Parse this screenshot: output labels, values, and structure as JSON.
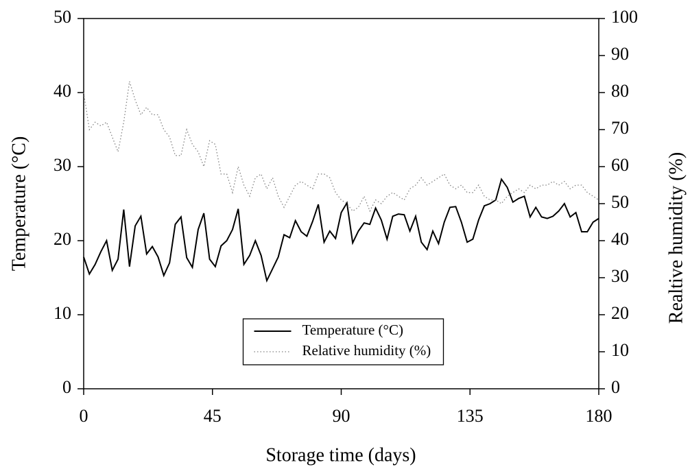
{
  "chart_data": {
    "type": "line",
    "xlabel": "Storage time (days)",
    "ylabel": "Temperature (°C)",
    "y2label": "Realtive humidity (%)",
    "x": [
      0,
      2,
      4,
      6,
      8,
      10,
      12,
      14,
      16,
      18,
      20,
      22,
      24,
      26,
      28,
      30,
      32,
      34,
      36,
      38,
      40,
      42,
      44,
      46,
      48,
      50,
      52,
      54,
      56,
      58,
      60,
      62,
      64,
      66,
      68,
      70,
      72,
      74,
      76,
      78,
      80,
      82,
      84,
      86,
      88,
      90,
      92,
      94,
      96,
      98,
      100,
      102,
      104,
      106,
      108,
      110,
      112,
      114,
      116,
      118,
      120,
      122,
      124,
      126,
      128,
      130,
      132,
      134,
      136,
      138,
      140,
      142,
      144,
      146,
      148,
      150,
      152,
      154,
      156,
      158,
      160,
      162,
      164,
      166,
      168,
      170,
      172,
      174,
      176,
      178,
      180
    ],
    "series": [
      {
        "name": "Temperature (°C)",
        "color": "#000000",
        "dash": "solid",
        "values": [
          17.8,
          15.5,
          16.8,
          18.5,
          20,
          16,
          17.5,
          24.2,
          16.5,
          22,
          23.3,
          18.2,
          19.2,
          17.8,
          15.3,
          17,
          22.2,
          23.2,
          17.7,
          16.4,
          21.5,
          23.7,
          17.5,
          16.5,
          19.3,
          20,
          21.5,
          24.3,
          16.8,
          18,
          20,
          18,
          14.6,
          16.2,
          17.8,
          20.8,
          20.4,
          22.7,
          21.2,
          20.6,
          22.6,
          24.9,
          19.8,
          21.3,
          20.3,
          23.8,
          25.1,
          19.7,
          21.3,
          22.4,
          22.2,
          24.4,
          22.8,
          20.2,
          23.3,
          23.6,
          23.5,
          21.3,
          23.3,
          19.8,
          18.8,
          21.3,
          19.6,
          22.5,
          24.5,
          24.6,
          22.5,
          19.8,
          20.2,
          22.8,
          24.7,
          25,
          25.5,
          28.3,
          27.2,
          25.2,
          25.7,
          26,
          23.2,
          24.5,
          23.2,
          23,
          23.3,
          24,
          25,
          23.2,
          23.8,
          21.2,
          21.2,
          22.5,
          23
        ]
      },
      {
        "name": "Relative humidity (%)",
        "color": "#808080",
        "dash": "dotted",
        "axis": "y2",
        "values": [
          80,
          70,
          72,
          71,
          72,
          68,
          64,
          72,
          83,
          78,
          74,
          76,
          74,
          74,
          70,
          68,
          63,
          63,
          70,
          66,
          64,
          60,
          67,
          66,
          58,
          58,
          53,
          60,
          55,
          52,
          57,
          58,
          54,
          57,
          52,
          49,
          52,
          55,
          56,
          55,
          54,
          58,
          58,
          57,
          53,
          51,
          50,
          48,
          49,
          52,
          48,
          51,
          50,
          52,
          53,
          52,
          51,
          54,
          55,
          57,
          55,
          56,
          57,
          58,
          55,
          54,
          55,
          53,
          53,
          55,
          52,
          51,
          51,
          50,
          52,
          53,
          54,
          53,
          55,
          54,
          55,
          55,
          56,
          55,
          56,
          54,
          55,
          55,
          53,
          52,
          51
        ]
      }
    ],
    "xlim": [
      0,
      180
    ],
    "xticks": [
      0,
      45,
      90,
      135,
      180
    ],
    "ylim": [
      0,
      50
    ],
    "yticks": [
      0,
      10,
      20,
      30,
      40,
      50
    ],
    "y2lim": [
      0,
      100
    ],
    "y2ticks": [
      0,
      10,
      20,
      30,
      40,
      50,
      60,
      70,
      80,
      90,
      100
    ],
    "grid": false,
    "legend": "lower center"
  }
}
